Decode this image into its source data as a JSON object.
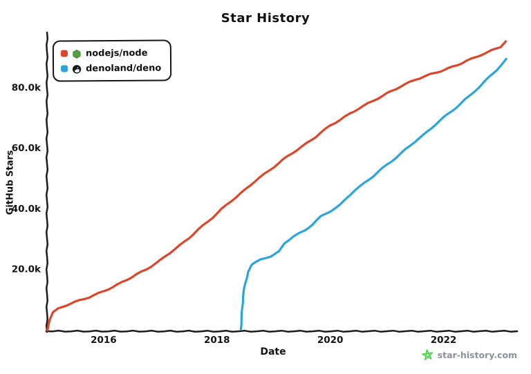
{
  "title": "Star History",
  "legend": {
    "items": [
      {
        "label": "nodejs/node",
        "color": "#dd4528",
        "icon": "nodejs-logo"
      },
      {
        "label": "denoland/deno",
        "color": "#28a5dd",
        "icon": "deno-logo"
      }
    ]
  },
  "watermark": {
    "text": "star-history.com",
    "icon": "star-icon",
    "icon_color": "#35d435",
    "text_color": "#8b9196"
  },
  "colors": {
    "axis": "#1b1b1b",
    "background": "#ffffff"
  },
  "chart_data": {
    "type": "line",
    "title": "Star History",
    "xlabel": "Date",
    "ylabel": "GitHub Stars",
    "xlim": [
      2015.0,
      2023.3
    ],
    "ylim": [
      0,
      98000
    ],
    "grid": false,
    "legend_position": "top-left",
    "x_tick_values": [
      2016,
      2018,
      2020,
      2022
    ],
    "x_tick_labels": [
      "2016",
      "2018",
      "2020",
      "2022"
    ],
    "y_tick_values": [
      20000,
      40000,
      60000,
      80000
    ],
    "y_tick_labels": [
      "20.0k",
      "40.0k",
      "60.0k",
      "80.0k"
    ],
    "series": [
      {
        "name": "nodejs/node",
        "color": "#dd4528",
        "x": [
          2015.01,
          2015.05,
          2015.1,
          2015.2,
          2015.35,
          2015.5,
          2015.75,
          2016,
          2016.25,
          2016.5,
          2016.75,
          2017,
          2017.25,
          2017.5,
          2017.75,
          2018,
          2018.25,
          2018.5,
          2018.75,
          2019,
          2019.25,
          2019.5,
          2019.75,
          2020,
          2020.25,
          2020.5,
          2020.75,
          2021,
          2021.25,
          2021.5,
          2021.75,
          2022,
          2022.25,
          2022.5,
          2022.75,
          2023,
          2023.1
        ],
        "y": [
          0,
          3500,
          5800,
          7000,
          8200,
          9200,
          10800,
          12800,
          15000,
          17400,
          20000,
          23000,
          26500,
          30300,
          34300,
          38500,
          42500,
          46400,
          50200,
          53800,
          57300,
          60600,
          63800,
          67500,
          70300,
          73000,
          75600,
          78100,
          80400,
          82600,
          84300,
          85800,
          87500,
          89500,
          91500,
          93500,
          95300
        ]
      },
      {
        "name": "denoland/deno",
        "color": "#28a5dd",
        "x": [
          2018.42,
          2018.44,
          2018.46,
          2018.5,
          2018.55,
          2018.62,
          2018.78,
          2018.95,
          2019.09,
          2019.2,
          2019.35,
          2019.54,
          2019.68,
          2019.84,
          2020,
          2020.17,
          2020.43,
          2020.84,
          2021.24,
          2021.65,
          2022.06,
          2022.46,
          2022.7,
          2022.95,
          2023.1
        ],
        "y": [
          0,
          5000,
          11000,
          15500,
          19300,
          21600,
          23200,
          24400,
          25800,
          28600,
          30900,
          32700,
          34800,
          37400,
          39200,
          41300,
          46000,
          52000,
          58200,
          64500,
          71000,
          77200,
          81600,
          86000,
          89300
        ]
      }
    ]
  }
}
